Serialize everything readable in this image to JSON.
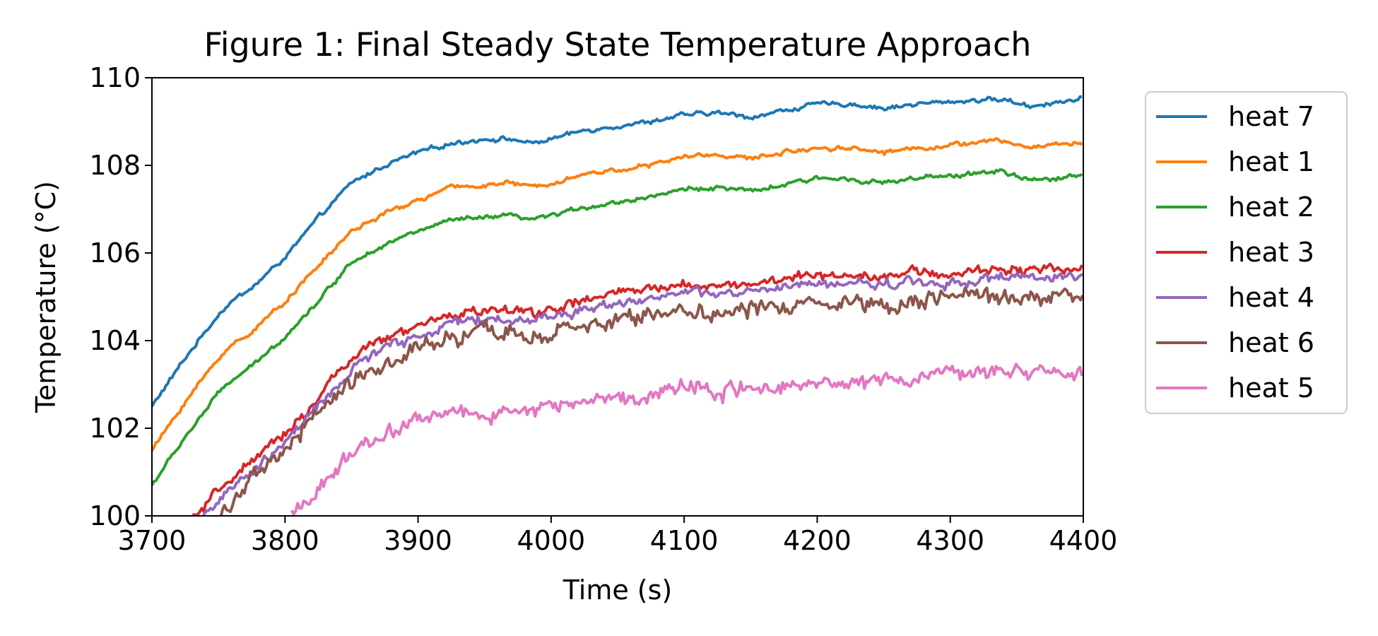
{
  "chart_data": {
    "type": "line",
    "title": "Figure 1: Final Steady State Temperature Approach",
    "xlabel": "Time (s)",
    "ylabel": "Temperature (°C)",
    "xlim": [
      3700,
      4400
    ],
    "ylim": [
      100,
      110
    ],
    "xticks": [
      "3700",
      "3800",
      "3900",
      "4000",
      "4100",
      "4200",
      "4300",
      "4400"
    ],
    "yticks": [
      "100",
      "102",
      "104",
      "106",
      "108",
      "110"
    ],
    "grid": false,
    "legend_position": "outside-right-top",
    "series": [
      {
        "name": "heat 7",
        "color": "#1f77b4",
        "noise": 0.04,
        "x": [
          3700,
          3725,
          3750,
          3760,
          3775,
          3800,
          3825,
          3850,
          3875,
          3900,
          3925,
          3950,
          3970,
          3985,
          4000,
          4025,
          4050,
          4075,
          4100,
          4125,
          4150,
          4175,
          4200,
          4225,
          4250,
          4275,
          4300,
          4325,
          4340,
          4360,
          4380,
          4400
        ],
        "y": [
          102.5,
          103.6,
          104.6,
          104.9,
          105.2,
          105.9,
          106.8,
          107.6,
          108.0,
          108.3,
          108.5,
          108.6,
          108.6,
          108.5,
          108.6,
          108.8,
          108.9,
          109.0,
          109.15,
          109.2,
          109.1,
          109.25,
          109.4,
          109.4,
          109.3,
          109.4,
          109.45,
          109.5,
          109.5,
          109.35,
          109.45,
          109.5
        ]
      },
      {
        "name": "heat 1",
        "color": "#ff7f0e",
        "noise": 0.04,
        "x": [
          3700,
          3725,
          3750,
          3760,
          3775,
          3800,
          3825,
          3850,
          3875,
          3900,
          3925,
          3950,
          3970,
          3985,
          4000,
          4025,
          4050,
          4075,
          4100,
          4125,
          4150,
          4175,
          4200,
          4225,
          4250,
          4275,
          4300,
          4325,
          4340,
          4360,
          4380,
          4400
        ],
        "y": [
          101.5,
          102.6,
          103.6,
          103.9,
          104.2,
          104.9,
          105.7,
          106.5,
          106.9,
          107.2,
          107.5,
          107.55,
          107.6,
          107.5,
          107.6,
          107.8,
          107.9,
          108.0,
          108.2,
          108.25,
          108.15,
          108.3,
          108.4,
          108.4,
          108.3,
          108.4,
          108.45,
          108.55,
          108.55,
          108.4,
          108.5,
          108.5
        ]
      },
      {
        "name": "heat 2",
        "color": "#2ca02c",
        "noise": 0.04,
        "x": [
          3700,
          3725,
          3750,
          3760,
          3775,
          3800,
          3825,
          3850,
          3875,
          3900,
          3925,
          3950,
          3970,
          3985,
          4000,
          4025,
          4050,
          4075,
          4100,
          4125,
          4150,
          4175,
          4200,
          4225,
          4250,
          4275,
          4300,
          4325,
          4340,
          4360,
          4380,
          4400
        ],
        "y": [
          100.7,
          101.8,
          102.8,
          103.1,
          103.4,
          104.1,
          104.9,
          105.8,
          106.2,
          106.5,
          106.75,
          106.8,
          106.85,
          106.75,
          106.85,
          107.05,
          107.15,
          107.3,
          107.45,
          107.5,
          107.4,
          107.55,
          107.7,
          107.7,
          107.6,
          107.7,
          107.75,
          107.85,
          107.85,
          107.65,
          107.7,
          107.8
        ]
      },
      {
        "name": "heat 3",
        "color": "#d62728",
        "noise": 0.09,
        "x": [
          3730,
          3740,
          3760,
          3780,
          3800,
          3820,
          3840,
          3860,
          3880,
          3900,
          3925,
          3950,
          3975,
          4000,
          4025,
          4050,
          4075,
          4100,
          4125,
          4150,
          4175,
          4200,
          4225,
          4250,
          4275,
          4300,
          4325,
          4350,
          4375,
          4400
        ],
        "y": [
          99.9,
          100.2,
          100.9,
          101.3,
          101.9,
          102.5,
          103.3,
          103.8,
          104.1,
          104.3,
          104.6,
          104.7,
          104.65,
          104.7,
          104.9,
          105.1,
          105.15,
          105.3,
          105.25,
          105.3,
          105.4,
          105.5,
          105.5,
          105.5,
          105.55,
          105.5,
          105.6,
          105.65,
          105.6,
          105.7
        ]
      },
      {
        "name": "heat 4",
        "color": "#9467bd",
        "noise": 0.09,
        "x": [
          3735,
          3745,
          3760,
          3780,
          3800,
          3820,
          3840,
          3860,
          3880,
          3900,
          3925,
          3950,
          3975,
          4000,
          4025,
          4050,
          4075,
          4100,
          4125,
          4150,
          4175,
          4200,
          4225,
          4250,
          4275,
          4300,
          4325,
          4350,
          4375,
          4400
        ],
        "y": [
          99.9,
          100.2,
          100.6,
          101.1,
          101.7,
          102.3,
          103.0,
          103.6,
          103.9,
          104.1,
          104.4,
          104.5,
          104.45,
          104.55,
          104.7,
          104.9,
          104.95,
          105.1,
          105.05,
          105.1,
          105.2,
          105.3,
          105.3,
          105.3,
          105.35,
          105.3,
          105.4,
          105.45,
          105.4,
          105.45
        ]
      },
      {
        "name": "heat 6",
        "color": "#8c564b",
        "noise": 0.16,
        "x": [
          3750,
          3760,
          3780,
          3800,
          3820,
          3840,
          3860,
          3880,
          3900,
          3925,
          3950,
          3975,
          4000,
          4025,
          4050,
          4075,
          4100,
          4125,
          4150,
          4175,
          4200,
          4225,
          4250,
          4275,
          4300,
          4325,
          4350,
          4375,
          4400
        ],
        "y": [
          99.9,
          100.4,
          100.9,
          101.5,
          102.2,
          102.8,
          103.3,
          103.5,
          103.8,
          104.0,
          104.2,
          104.15,
          104.1,
          104.3,
          104.5,
          104.6,
          104.75,
          104.6,
          104.7,
          104.8,
          104.9,
          104.9,
          104.85,
          104.95,
          105.0,
          104.95,
          105.0,
          105.0,
          105.05
        ]
      },
      {
        "name": "heat 5",
        "color": "#e377c2",
        "noise": 0.14,
        "x": [
          3805,
          3815,
          3830,
          3850,
          3875,
          3900,
          3925,
          3950,
          3975,
          4000,
          4025,
          4050,
          4075,
          4100,
          4125,
          4150,
          4175,
          4200,
          4225,
          4250,
          4275,
          4300,
          4325,
          4350,
          4375,
          4400
        ],
        "y": [
          99.95,
          100.3,
          100.8,
          101.4,
          101.9,
          102.2,
          102.35,
          102.3,
          102.4,
          102.5,
          102.6,
          102.7,
          102.8,
          103.0,
          102.85,
          102.9,
          103.0,
          103.1,
          103.1,
          103.05,
          103.15,
          103.3,
          103.3,
          103.3,
          103.2,
          103.2
        ]
      }
    ]
  }
}
